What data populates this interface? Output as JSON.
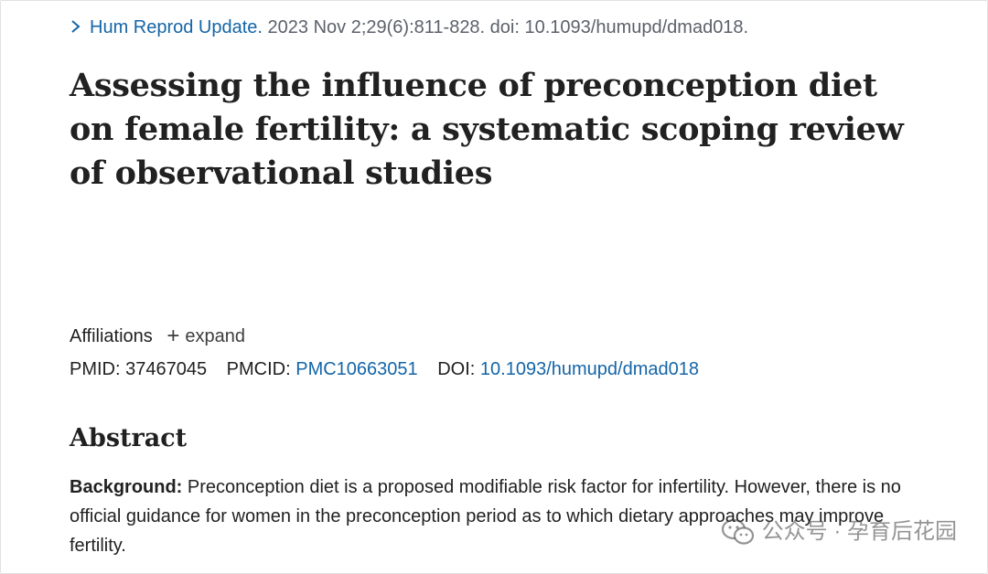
{
  "citation": {
    "journal": "Hum Reprod Update.",
    "details": "2023 Nov 2;29(6):811-828. doi: 10.1093/humupd/dmad018."
  },
  "article": {
    "title": "Assessing the influence of preconception diet on female fertility: a systematic scoping review of observational studies"
  },
  "affiliations": {
    "label": "Affiliations",
    "expand_label": "expand"
  },
  "identifiers": {
    "pmid_label": "PMID:",
    "pmid": "37467045",
    "pmcid_label": "PMCID:",
    "pmcid": "PMC10663051",
    "doi_label": "DOI:",
    "doi": "10.1093/humupd/dmad018"
  },
  "abstract": {
    "heading": "Abstract",
    "background_label": "Background:",
    "background_text": "Preconception diet is a proposed modifiable risk factor for infertility. However, there is no official guidance for women in the preconception period as to which dietary approaches may improve fertility."
  },
  "watermark": {
    "text": "公众号 · 孕育后花园",
    "icon": "wechat-icon"
  },
  "colors": {
    "link": "#1565a7",
    "text": "#212121",
    "muted": "#5b616b"
  }
}
